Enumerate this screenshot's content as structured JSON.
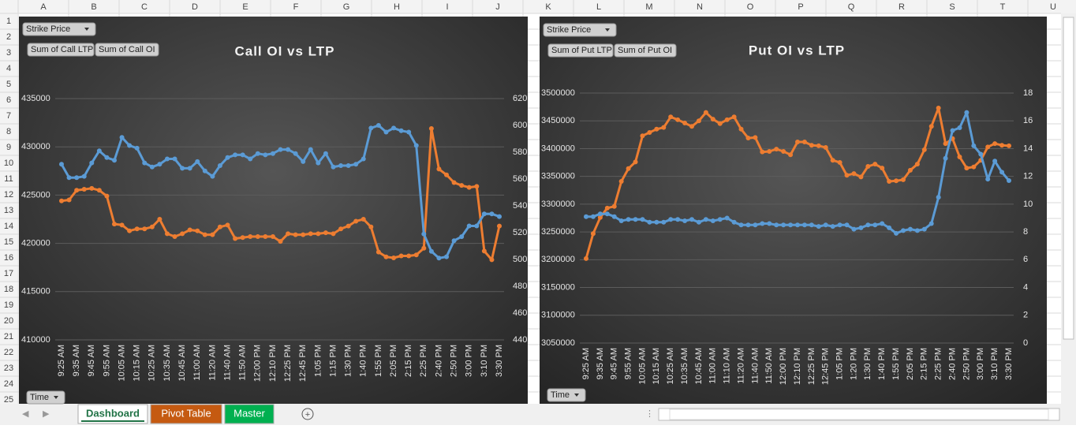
{
  "spreadsheet": {
    "columns": [
      "A",
      "B",
      "C",
      "D",
      "E",
      "F",
      "G",
      "H",
      "I",
      "J",
      "K",
      "L",
      "M",
      "N",
      "O",
      "P",
      "Q",
      "R",
      "S",
      "T",
      "U"
    ],
    "rows": [
      1,
      2,
      3,
      4,
      5,
      6,
      7,
      8,
      9,
      10,
      11,
      12,
      13,
      14,
      15,
      16,
      17,
      18,
      19,
      20,
      21,
      22,
      23,
      24,
      25
    ],
    "sheet_tabs": [
      "Dashboard",
      "Pivot Table",
      "Master"
    ]
  },
  "chart_data": [
    {
      "type": "line",
      "title": "Call OI vs LTP",
      "filter_button": "Strike Price",
      "axis_button": "Time",
      "categories": [
        "9:25 AM",
        null,
        "9:35 AM",
        null,
        "9:45 AM",
        null,
        "9:55 AM",
        null,
        "10:05 AM",
        null,
        "10:15 AM",
        null,
        "10:25 AM",
        null,
        "10:35 AM",
        null,
        "10:45 AM",
        null,
        "11:00 AM",
        null,
        "11:20 AM",
        null,
        "11:40 AM",
        null,
        "11:50 AM",
        null,
        "12:00 PM",
        null,
        "12:10 PM",
        null,
        "12:25 PM",
        null,
        "12:45 PM",
        null,
        "1:05 PM",
        null,
        "1:15 PM",
        null,
        "1:30 PM",
        null,
        "1:40 PM",
        null,
        "1:55 PM",
        null,
        "2:05 PM",
        null,
        "2:15 PM",
        null,
        "2:25 PM",
        null,
        "2:40 PM",
        null,
        "2:50 PM",
        null,
        "3:00 PM",
        null,
        "3:10 PM",
        null,
        "3:30 PM"
      ],
      "series": [
        {
          "name": "Sum of Call LTP",
          "color": "#5b9bd5",
          "axis": "y2",
          "values": [
            571,
            561,
            561,
            562,
            572,
            581,
            576,
            574,
            591,
            585,
            583,
            572,
            569,
            571,
            575,
            575,
            568,
            568,
            573,
            566,
            562,
            570,
            576,
            578,
            578,
            575,
            579,
            578,
            579,
            582,
            582,
            579,
            573,
            582,
            572,
            579,
            569,
            570,
            570,
            571,
            575,
            598,
            600,
            595,
            598,
            596,
            595,
            585,
            519,
            506,
            501,
            502,
            514,
            517,
            525,
            525,
            534,
            534,
            532
          ]
        },
        {
          "name": "Sum of Call OI",
          "color": "#ed7d31",
          "values": [
            424400,
            424500,
            425500,
            425600,
            425700,
            425500,
            424900,
            422000,
            421900,
            421300,
            421500,
            421500,
            421700,
            422500,
            421000,
            420700,
            421000,
            421400,
            421300,
            420900,
            420900,
            421700,
            421900,
            420500,
            420600,
            420700,
            420700,
            420700,
            420700,
            420200,
            421000,
            420900,
            420900,
            421000,
            421000,
            421100,
            421000,
            421500,
            421800,
            422300,
            422500,
            421700,
            419100,
            418600,
            418500,
            418700,
            418700,
            418800,
            419500,
            431900,
            427700,
            427100,
            426300,
            426000,
            425800,
            425900,
            419200,
            418300,
            421800
          ]
        }
      ],
      "ylim": [
        410000,
        435000
      ],
      "yticks": [
        410000,
        415000,
        420000,
        425000,
        430000,
        435000
      ],
      "y2lim": [
        440,
        620
      ],
      "y2ticks": [
        440,
        460,
        480,
        500,
        520,
        540,
        560,
        580,
        600,
        620
      ],
      "grid": true
    },
    {
      "type": "line",
      "title": "Put OI vs LTP",
      "filter_button": "Strike Price",
      "axis_button": "Time",
      "categories": [
        "9:25 AM",
        null,
        "9:35 AM",
        null,
        "9:45 AM",
        null,
        "9:55 AM",
        null,
        "10:05 AM",
        null,
        "10:15 AM",
        null,
        "10:25 AM",
        null,
        "10:35 AM",
        null,
        "10:45 AM",
        null,
        "11:00 AM",
        null,
        "11:10 AM",
        null,
        "11:20 AM",
        null,
        "11:40 AM",
        null,
        "11:50 AM",
        null,
        "12:00 PM",
        null,
        "12:10 PM",
        null,
        "12:25 PM",
        null,
        "12:45 PM",
        null,
        "1:05 PM",
        null,
        "1:20 PM",
        null,
        "1:30 PM",
        null,
        "1:40 PM",
        null,
        "1:55 PM",
        null,
        "2:05 PM",
        null,
        "2:15 PM",
        null,
        "2:25 PM",
        null,
        "2:40 PM",
        null,
        "2:50 PM",
        null,
        "3:00 PM",
        null,
        "3:10 PM",
        null,
        "3:30 PM"
      ],
      "series": [
        {
          "name": "Sum of Put LTP",
          "color": "#5b9bd5",
          "axis": "y2",
          "values": [
            9.1,
            9.1,
            9.3,
            9.3,
            9.1,
            8.8,
            8.9,
            8.9,
            8.9,
            8.7,
            8.7,
            8.7,
            8.9,
            8.9,
            8.8,
            8.9,
            8.7,
            8.9,
            8.8,
            8.9,
            9.0,
            8.7,
            8.5,
            8.5,
            8.5,
            8.6,
            8.6,
            8.5,
            8.5,
            8.5,
            8.5,
            8.5,
            8.5,
            8.4,
            8.5,
            8.4,
            8.5,
            8.5,
            8.2,
            8.3,
            8.5,
            8.5,
            8.6,
            8.3,
            7.9,
            8.1,
            8.2,
            8.1,
            8.2,
            8.6,
            10.5,
            13.3,
            15.3,
            15.5,
            16.6,
            14.2,
            13.6,
            11.8,
            13.1,
            12.3,
            11.7
          ]
        },
        {
          "name": "Sum of Put OI",
          "color": "#ed7d31",
          "values": [
            3202000,
            3247000,
            3276000,
            3293000,
            3296000,
            3341000,
            3364000,
            3376000,
            3423000,
            3429000,
            3435000,
            3438000,
            3457000,
            3452000,
            3446000,
            3440000,
            3450000,
            3465000,
            3453000,
            3445000,
            3452000,
            3457000,
            3435000,
            3419000,
            3420000,
            3394000,
            3395000,
            3399000,
            3395000,
            3389000,
            3412000,
            3412000,
            3406000,
            3405000,
            3402000,
            3379000,
            3375000,
            3352000,
            3355000,
            3349000,
            3368000,
            3372000,
            3365000,
            3341000,
            3342000,
            3344000,
            3361000,
            3372000,
            3398000,
            3440000,
            3473000,
            3409000,
            3418000,
            3385000,
            3365000,
            3367000,
            3379000,
            3403000,
            3409000,
            3406000,
            3405000
          ]
        }
      ],
      "ylim": [
        3050000,
        3500000
      ],
      "yticks": [
        3050000,
        3100000,
        3150000,
        3200000,
        3250000,
        3300000,
        3350000,
        3400000,
        3450000,
        3500000
      ],
      "y2lim": [
        0,
        18
      ],
      "y2ticks": [
        0,
        2,
        4,
        6,
        8,
        10,
        12,
        14,
        16,
        18
      ],
      "grid": true
    }
  ]
}
